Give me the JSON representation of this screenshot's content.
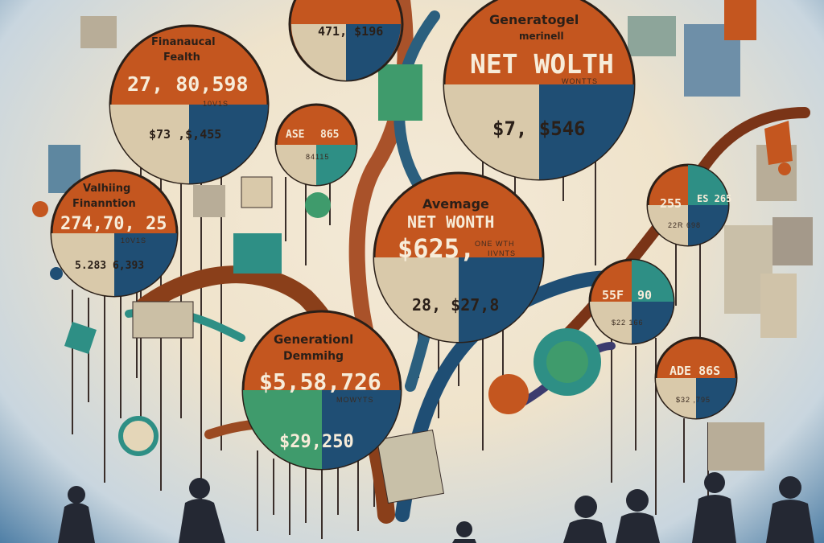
{
  "palette": {
    "rust": "#c4561f",
    "navy": "#1f4e74",
    "teal": "#2e8f85",
    "cream": "#d9c9aa",
    "green": "#3f9b6c",
    "ink": "#2a1f18"
  },
  "bubbles": {
    "top_partial": {
      "value": "471, $196"
    },
    "financial_health": {
      "title_line1": "Finanaucal",
      "title_line2": "Fealth",
      "value": "27, 80,598",
      "sub": "10V1S",
      "pie_value": "$73 ,$,455"
    },
    "generatogel": {
      "title_line1": "Generatogel",
      "title_line2": "merinell",
      "headline": "NET WOLTH",
      "sub": "WONTTS",
      "pie_value": "$7, $546"
    },
    "small_mid": {
      "left": "ASE",
      "right": "865",
      "bottom": "84115"
    },
    "valuing": {
      "title_line1": "Valhiing",
      "title_line2": "Finanntion",
      "value": "274,70, 25",
      "sub": "10V1S",
      "pie_value": "5.283 6,393"
    },
    "average": {
      "title_line1": "Avemage",
      "headline": "NET WONTH",
      "value": "$625,",
      "side_note_1": "ONE WTH",
      "side_note_2": "IIVNTS",
      "pie_value": "28, $27,8"
    },
    "right_top": {
      "left": "255",
      "right": "ES\n265",
      "bottom": "22R 698"
    },
    "right_mid": {
      "left": "55F",
      "right": "90",
      "bottom": "$22 166"
    },
    "generational": {
      "title_line1": "Generationl",
      "title_line2": "Demmihg",
      "value": "$5,58,726",
      "sub": "MOWYTS",
      "pie_value": "$29,250"
    },
    "right_bottom": {
      "headline": "ADE 86S",
      "bottom": "$32 ,795"
    }
  }
}
